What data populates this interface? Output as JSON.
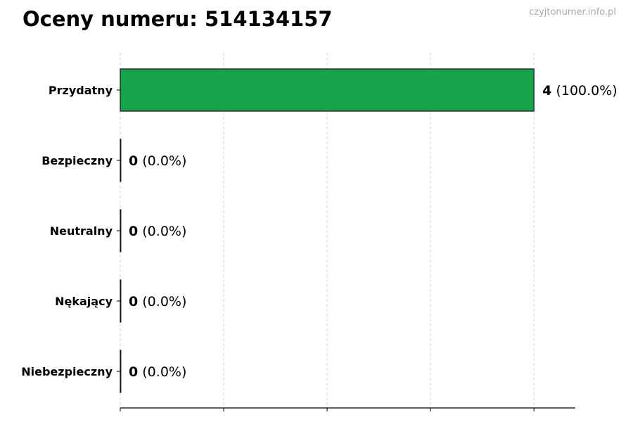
{
  "title": "Oceny numeru: 514134157",
  "watermark": "czyjtonumer.info.pl",
  "chart_data": {
    "type": "bar",
    "orientation": "horizontal",
    "title": "Oceny numeru: 514134157",
    "categories": [
      "Przydatny",
      "Bezpieczny",
      "Neutralny",
      "Nękający",
      "Niebezpieczny"
    ],
    "values": [
      4,
      0,
      0,
      0,
      0
    ],
    "labels": [
      {
        "count": "4",
        "pct": "(100.0%)"
      },
      {
        "count": "0",
        "pct": "(0.0%)"
      },
      {
        "count": "0",
        "pct": "(0.0%)"
      },
      {
        "count": "0",
        "pct": "(0.0%)"
      },
      {
        "count": "0",
        "pct": "(0.0%)"
      }
    ],
    "xlim": [
      0,
      4.4
    ],
    "xticks": [
      0,
      1,
      2,
      3,
      4
    ],
    "xtick_labels_shown": false,
    "grid": "x, dashed",
    "bar_color": "#17a34a",
    "xlabel": "",
    "ylabel": ""
  }
}
